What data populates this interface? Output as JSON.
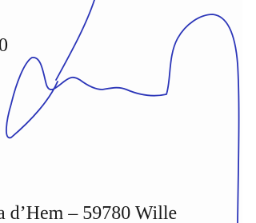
{
  "page": {
    "fragment_left": "0",
    "address_line": "a d’Hem – 59780 Wille"
  }
}
